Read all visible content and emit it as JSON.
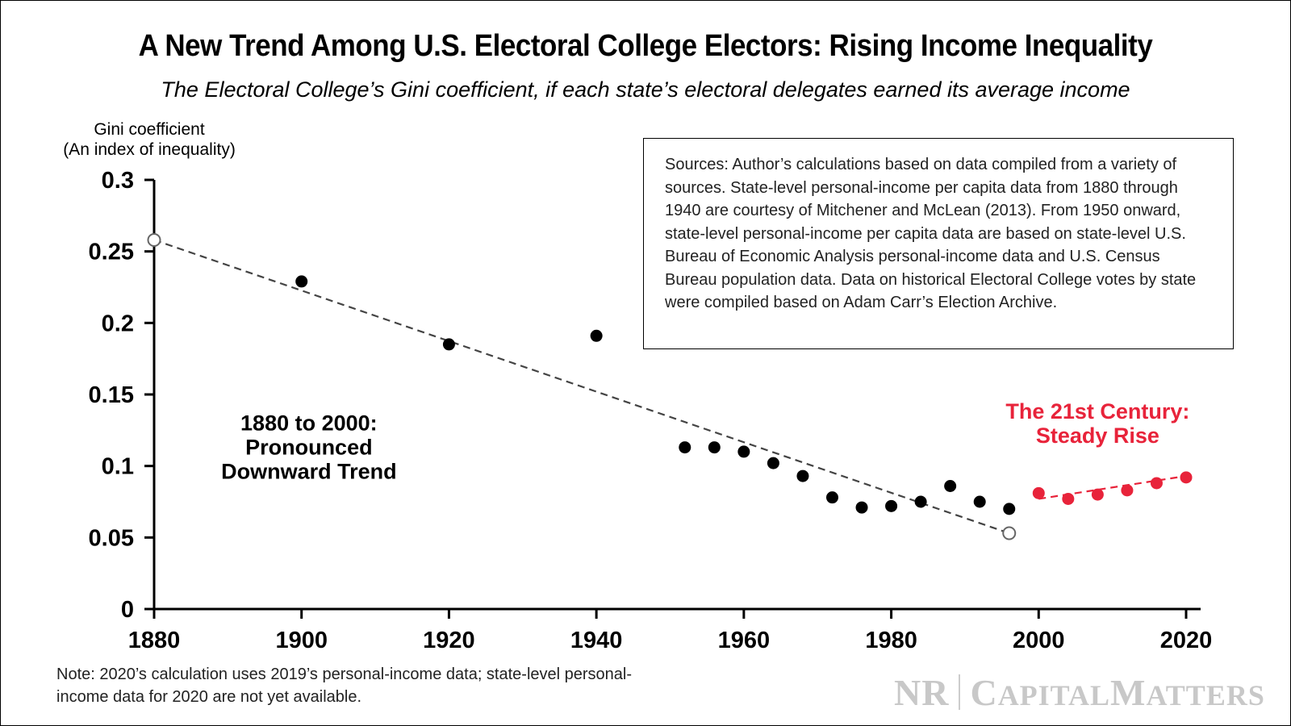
{
  "title": "A New Trend Among U.S. Electoral College Electors: Rising Income Inequality",
  "subtitle": "The Electoral College’s Gini coefficient, if each state’s electoral delegates earned its average income",
  "sources": "Sources: Author’s calculations based on data compiled from a variety of sources. State-level personal-income per capita data from 1880 through 1940 are courtesy of Mitchener and McLean (2013). From 1950 onward, state-level personal-income per capita data are based on state-level U.S. Bureau of Economic Analysis personal-income data and U.S. Census Bureau population data. Data on historical Electoral College votes by state were compiled based on Adam Carr’s Election Archive.",
  "note": "Note: 2020’s calculation uses 2019’s personal-income data; state-level personal-income data for 2020 are not yet available.",
  "logo": {
    "left": "NR",
    "right": "CapitalMatters"
  },
  "chart_data": {
    "type": "scatter",
    "ylabel_line1": "Gini coefficient",
    "ylabel_line2": "(An index of inequality)",
    "xlim": [
      1880,
      2020
    ],
    "ylim": [
      0,
      0.3
    ],
    "xticks": [
      1880,
      1900,
      1920,
      1940,
      1960,
      1980,
      2000,
      2020
    ],
    "yticks": [
      {
        "v": 0,
        "label": "0"
      },
      {
        "v": 0.05,
        "label": "0.05"
      },
      {
        "v": 0.1,
        "label": "0.1"
      },
      {
        "v": 0.15,
        "label": "0.15"
      },
      {
        "v": 0.2,
        "label": "0.2"
      },
      {
        "v": 0.25,
        "label": "0.25"
      },
      {
        "v": 0.3,
        "label": "0.3"
      }
    ],
    "grid": false,
    "series": [
      {
        "color": "#000000",
        "x": [
          1900,
          1920,
          1940,
          1952,
          1956,
          1960,
          1964,
          1968,
          1972,
          1976,
          1980,
          1984,
          1988,
          1992,
          1996
        ],
        "y": [
          0.229,
          0.185,
          0.191,
          0.113,
          0.113,
          0.11,
          0.102,
          0.093,
          0.078,
          0.071,
          0.072,
          0.075,
          0.086,
          0.075,
          0.07
        ]
      },
      {
        "color": "#e8233a",
        "x": [
          2000,
          2004,
          2008,
          2012,
          2016,
          2020
        ],
        "y": [
          0.081,
          0.077,
          0.08,
          0.083,
          0.088,
          0.092
        ]
      }
    ],
    "trendlines": [
      {
        "color": "#444444",
        "x": [
          1880,
          1996
        ],
        "y": [
          0.258,
          0.053
        ],
        "open_endpoints": true
      },
      {
        "color": "#e8233a",
        "x": [
          2000,
          2020
        ],
        "y": [
          0.077,
          0.093
        ],
        "open_endpoints": false
      }
    ],
    "annotations": [
      {
        "lines": [
          "1880 to 2000:",
          "Pronounced",
          "Downward Trend"
        ],
        "color": "#000000",
        "x": 1901,
        "y": 0.125
      },
      {
        "lines": [
          "The 21st Century:",
          "Steady Rise"
        ],
        "color": "#e8233a",
        "x": 2008,
        "y": 0.133
      }
    ]
  }
}
